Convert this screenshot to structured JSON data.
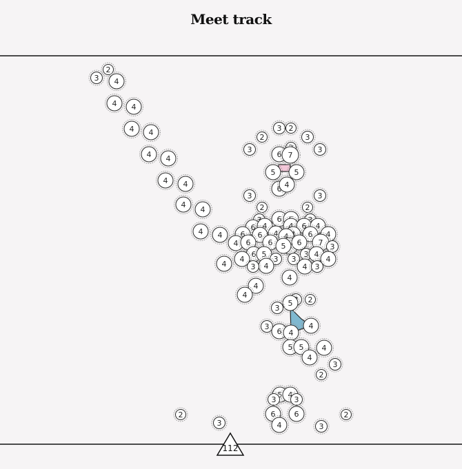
{
  "title": "Meet track",
  "footer_value": "112",
  "colors": {
    "background": "#f6f4f5",
    "node_fill": "#ffffff",
    "node_stroke": "#2a2a2a",
    "halo": "#999999",
    "blue_polygon": "#7fb8d0",
    "pink_polygon": "#f3c6d8"
  },
  "nodes": [
    {
      "v": "2"
    },
    {
      "v": "3"
    },
    {
      "v": "4"
    },
    {
      "v": "4"
    },
    {
      "v": "4"
    },
    {
      "v": "4"
    },
    {
      "v": "4"
    },
    {
      "v": "4"
    },
    {
      "v": "4"
    },
    {
      "v": "4"
    },
    {
      "v": "4"
    },
    {
      "v": "4"
    },
    {
      "v": "4"
    },
    {
      "v": "4"
    },
    {
      "v": "4"
    },
    {
      "v": "4"
    },
    {
      "v": "3"
    },
    {
      "v": "2"
    },
    {
      "v": "2"
    },
    {
      "v": "3"
    },
    {
      "v": "3"
    },
    {
      "v": "2"
    },
    {
      "v": "3"
    },
    {
      "v": "6"
    },
    {
      "v": "7"
    },
    {
      "v": "5"
    },
    {
      "v": "5"
    },
    {
      "v": "6"
    },
    {
      "v": "4"
    },
    {
      "v": "3"
    },
    {
      "v": "3"
    },
    {
      "v": "2"
    },
    {
      "v": "2"
    },
    {
      "v": "6"
    },
    {
      "v": "6"
    },
    {
      "v": "3"
    },
    {
      "v": "3"
    },
    {
      "v": "6"
    },
    {
      "v": "4"
    },
    {
      "v": "4"
    },
    {
      "v": "6"
    },
    {
      "v": "4"
    },
    {
      "v": "6"
    },
    {
      "v": "4"
    },
    {
      "v": "4"
    },
    {
      "v": "6"
    },
    {
      "v": "4"
    },
    {
      "v": "4"
    },
    {
      "v": "6"
    },
    {
      "v": "7"
    },
    {
      "v": "4"
    },
    {
      "v": "3"
    },
    {
      "v": "6"
    },
    {
      "v": "6"
    },
    {
      "v": "8"
    },
    {
      "v": "6"
    },
    {
      "v": "5"
    },
    {
      "v": "6"
    },
    {
      "v": "5"
    },
    {
      "v": "3"
    },
    {
      "v": "4"
    },
    {
      "v": "4"
    },
    {
      "v": "4"
    },
    {
      "v": "3"
    },
    {
      "v": "4"
    },
    {
      "v": "3"
    },
    {
      "v": "3"
    },
    {
      "v": "4"
    },
    {
      "v": "3"
    },
    {
      "v": "4"
    },
    {
      "v": "4"
    },
    {
      "v": "4"
    },
    {
      "v": "3"
    },
    {
      "v": "2"
    },
    {
      "v": "5"
    },
    {
      "v": "3"
    },
    {
      "v": "4"
    },
    {
      "v": "3"
    },
    {
      "v": "6"
    },
    {
      "v": "4"
    },
    {
      "v": "5"
    },
    {
      "v": "5"
    },
    {
      "v": "4"
    },
    {
      "v": "4"
    },
    {
      "v": "3"
    },
    {
      "v": "2"
    },
    {
      "v": "5"
    },
    {
      "v": "4"
    },
    {
      "v": "3"
    },
    {
      "v": "3"
    },
    {
      "v": "6"
    },
    {
      "v": "6"
    },
    {
      "v": "4"
    },
    {
      "v": "2"
    },
    {
      "v": "3"
    },
    {
      "v": "3"
    },
    {
      "v": "2"
    }
  ]
}
